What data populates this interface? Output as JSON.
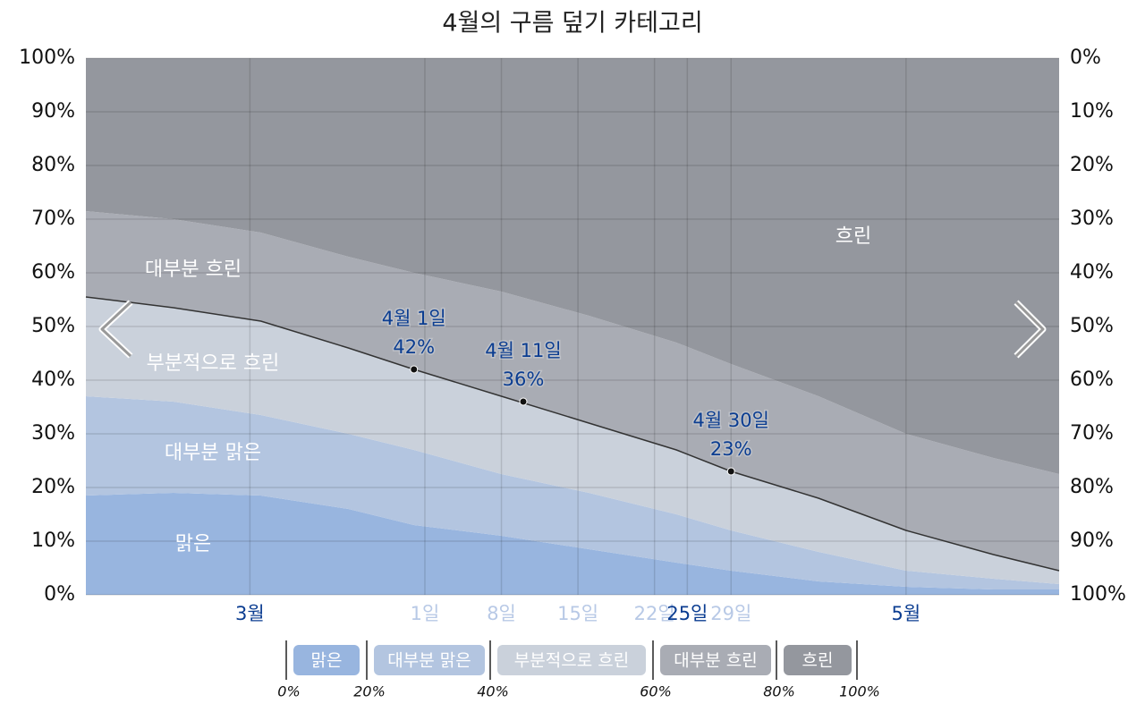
{
  "chart_data": {
    "type": "stacked-area",
    "title": "4월의 구름 덮기 카테고리",
    "x": [
      61,
      69,
      77,
      85,
      91,
      99,
      107,
      115,
      120,
      128,
      136,
      144,
      150
    ],
    "xlim": [
      61,
      150
    ],
    "xticks": [
      {
        "value": 76,
        "label": "3월"
      },
      {
        "value": 92,
        "label": "1일"
      },
      {
        "value": 99,
        "label": "8일"
      },
      {
        "value": 106,
        "label": "15일"
      },
      {
        "value": 113,
        "label": "22일"
      },
      {
        "value": 116,
        "label": "25일"
      },
      {
        "value": 120,
        "label": "29일"
      },
      {
        "value": 136,
        "label": "5월"
      }
    ],
    "ylim": [
      0,
      100
    ],
    "yticks": [
      {
        "value": 0,
        "label": "0%"
      },
      {
        "value": 10,
        "label": "10%"
      },
      {
        "value": 20,
        "label": "20%"
      },
      {
        "value": 30,
        "label": "30%"
      },
      {
        "value": 40,
        "label": "40%"
      },
      {
        "value": 50,
        "label": "50%"
      },
      {
        "value": 60,
        "label": "60%"
      },
      {
        "value": 70,
        "label": "70%"
      },
      {
        "value": 80,
        "label": "80%"
      },
      {
        "value": 90,
        "label": "90%"
      },
      {
        "value": 100,
        "label": "100%"
      }
    ],
    "y2lim": [
      100,
      0
    ],
    "y2ticks": [
      {
        "value": 0,
        "label": "0%"
      },
      {
        "value": 10,
        "label": "10%"
      },
      {
        "value": 20,
        "label": "20%"
      },
      {
        "value": 30,
        "label": "30%"
      },
      {
        "value": 40,
        "label": "40%"
      },
      {
        "value": 50,
        "label": "50%"
      },
      {
        "value": 60,
        "label": "60%"
      },
      {
        "value": 70,
        "label": "70%"
      },
      {
        "value": 80,
        "label": "80%"
      },
      {
        "value": 90,
        "label": "90%"
      },
      {
        "value": 100,
        "label": "100%"
      }
    ],
    "grid": true,
    "series": [
      {
        "name": "맑은",
        "color": "#98b5df",
        "values": [
          18.5,
          19,
          18.5,
          16,
          13,
          11,
          8.5,
          6,
          4.5,
          2.5,
          1.5,
          1,
          1
        ]
      },
      {
        "name": "대부분 맑은",
        "color": "#b3c5e0",
        "values": [
          18.5,
          17,
          15,
          14,
          14,
          11.5,
          10.5,
          9,
          7.5,
          5.5,
          3,
          2,
          1
        ]
      },
      {
        "name": "부분적으로 흐린",
        "color": "#cad1db",
        "values": [
          18.5,
          17.5,
          17.5,
          16,
          15,
          14.5,
          13,
          12,
          11,
          10,
          7.5,
          4.5,
          2.5
        ]
      },
      {
        "name": "대부분 흐린",
        "color": "#a9acb4",
        "values": [
          16,
          16.5,
          16.5,
          17,
          18,
          19.5,
          20,
          20,
          20,
          19,
          18,
          18,
          18
        ]
      },
      {
        "name": "흐린",
        "color": "#94979e",
        "values": [
          28.5,
          30,
          32.5,
          37,
          40,
          43.5,
          48,
          53,
          57,
          63,
          70,
          74.5,
          77.5
        ]
      }
    ],
    "annotations": [
      {
        "label": "4월 1일",
        "value_label": "42%",
        "x": 91,
        "y": 42
      },
      {
        "label": "4월 11일",
        "value_label": "36%",
        "x": 101,
        "y": 36
      },
      {
        "label": "4월 30일",
        "value_label": "23%",
        "x": 120,
        "y": 23
      }
    ],
    "legend_scale": [
      {
        "value": 0,
        "label": "0%"
      },
      {
        "value": 20,
        "label": "20%"
      },
      {
        "value": 40,
        "label": "40%"
      },
      {
        "value": 60,
        "label": "60%"
      },
      {
        "value": 80,
        "label": "80%"
      },
      {
        "value": 100,
        "label": "100%"
      }
    ]
  }
}
